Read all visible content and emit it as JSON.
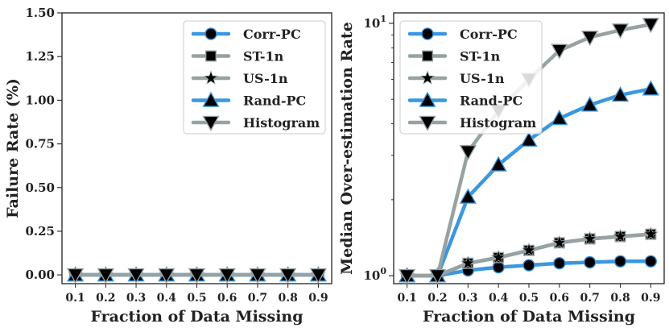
{
  "chart_data": [
    {
      "type": "line",
      "ylabel": "Failure Rate (%)",
      "xlabel": "Fraction of Data Missing",
      "x": [
        0.1,
        0.2,
        0.3,
        0.4,
        0.5,
        0.6,
        0.7,
        0.8,
        0.9
      ],
      "xticks": [
        "0.1",
        "0.2",
        "0.3",
        "0.4",
        "0.5",
        "0.6",
        "0.7",
        "0.8",
        "0.9"
      ],
      "ylim": [
        -0.05,
        1.5
      ],
      "yscale": "linear",
      "yticks": [
        0.0,
        0.25,
        0.5,
        0.75,
        1.0,
        1.25,
        1.5
      ],
      "ytick_labels": [
        "0.00",
        "0.25",
        "0.50",
        "0.75",
        "1.00",
        "1.25",
        "1.50"
      ],
      "legend_position": "top-right",
      "series": [
        {
          "name": "Corr-PC",
          "color": "#3a97e0",
          "marker": "circle",
          "values": [
            0,
            0,
            0,
            0,
            0,
            0,
            0,
            0,
            0
          ]
        },
        {
          "name": "ST-1n",
          "color": "#97a2a2",
          "marker": "square",
          "values": [
            0,
            0,
            0,
            0,
            0,
            0,
            0,
            0,
            0
          ]
        },
        {
          "name": "US-1n",
          "color": "#97a2a2",
          "marker": "star",
          "values": [
            0,
            0,
            0,
            0,
            0,
            0,
            0,
            0,
            0
          ]
        },
        {
          "name": "Rand-PC",
          "color": "#3a97e0",
          "marker": "triangle-up",
          "values": [
            0,
            0,
            0,
            0,
            0,
            0,
            0,
            0,
            0
          ]
        },
        {
          "name": "Histogram",
          "color": "#97a2a2",
          "marker": "triangle-down",
          "values": [
            0,
            0,
            0,
            0,
            0,
            0,
            0,
            0,
            0
          ]
        }
      ]
    },
    {
      "type": "line",
      "ylabel": "Median Over-estimation Rate",
      "xlabel": "Fraction of Data Missing",
      "x": [
        0.1,
        0.2,
        0.3,
        0.4,
        0.5,
        0.6,
        0.7,
        0.8,
        0.9
      ],
      "xticks": [
        "0.1",
        "0.2",
        "0.3",
        "0.4",
        "0.5",
        "0.6",
        "0.7",
        "0.8",
        "0.9"
      ],
      "ylim": [
        0.93,
        11.0
      ],
      "yscale": "log",
      "yticks": [
        1,
        10
      ],
      "ytick_labels": [
        "10⁰",
        "10¹"
      ],
      "legend_position": "top-left",
      "series": [
        {
          "name": "Corr-PC",
          "color": "#3a97e0",
          "marker": "circle",
          "values": [
            1.0,
            1.0,
            1.05,
            1.08,
            1.1,
            1.12,
            1.13,
            1.14,
            1.14
          ]
        },
        {
          "name": "ST-1n",
          "color": "#97a2a2",
          "marker": "square",
          "values": [
            1.0,
            1.0,
            1.12,
            1.18,
            1.26,
            1.35,
            1.4,
            1.43,
            1.46
          ]
        },
        {
          "name": "US-1n",
          "color": "#97a2a2",
          "marker": "star",
          "values": [
            1.0,
            1.0,
            1.12,
            1.18,
            1.26,
            1.35,
            1.4,
            1.43,
            1.46
          ]
        },
        {
          "name": "Rand-PC",
          "color": "#3a97e0",
          "marker": "triangle-up",
          "values": [
            1.0,
            1.0,
            2.05,
            2.75,
            3.45,
            4.2,
            4.75,
            5.2,
            5.5
          ]
        },
        {
          "name": "Histogram",
          "color": "#97a2a2",
          "marker": "triangle-down",
          "values": [
            1.0,
            1.0,
            3.1,
            4.5,
            6.0,
            7.8,
            8.8,
            9.4,
            9.9
          ]
        }
      ]
    }
  ]
}
